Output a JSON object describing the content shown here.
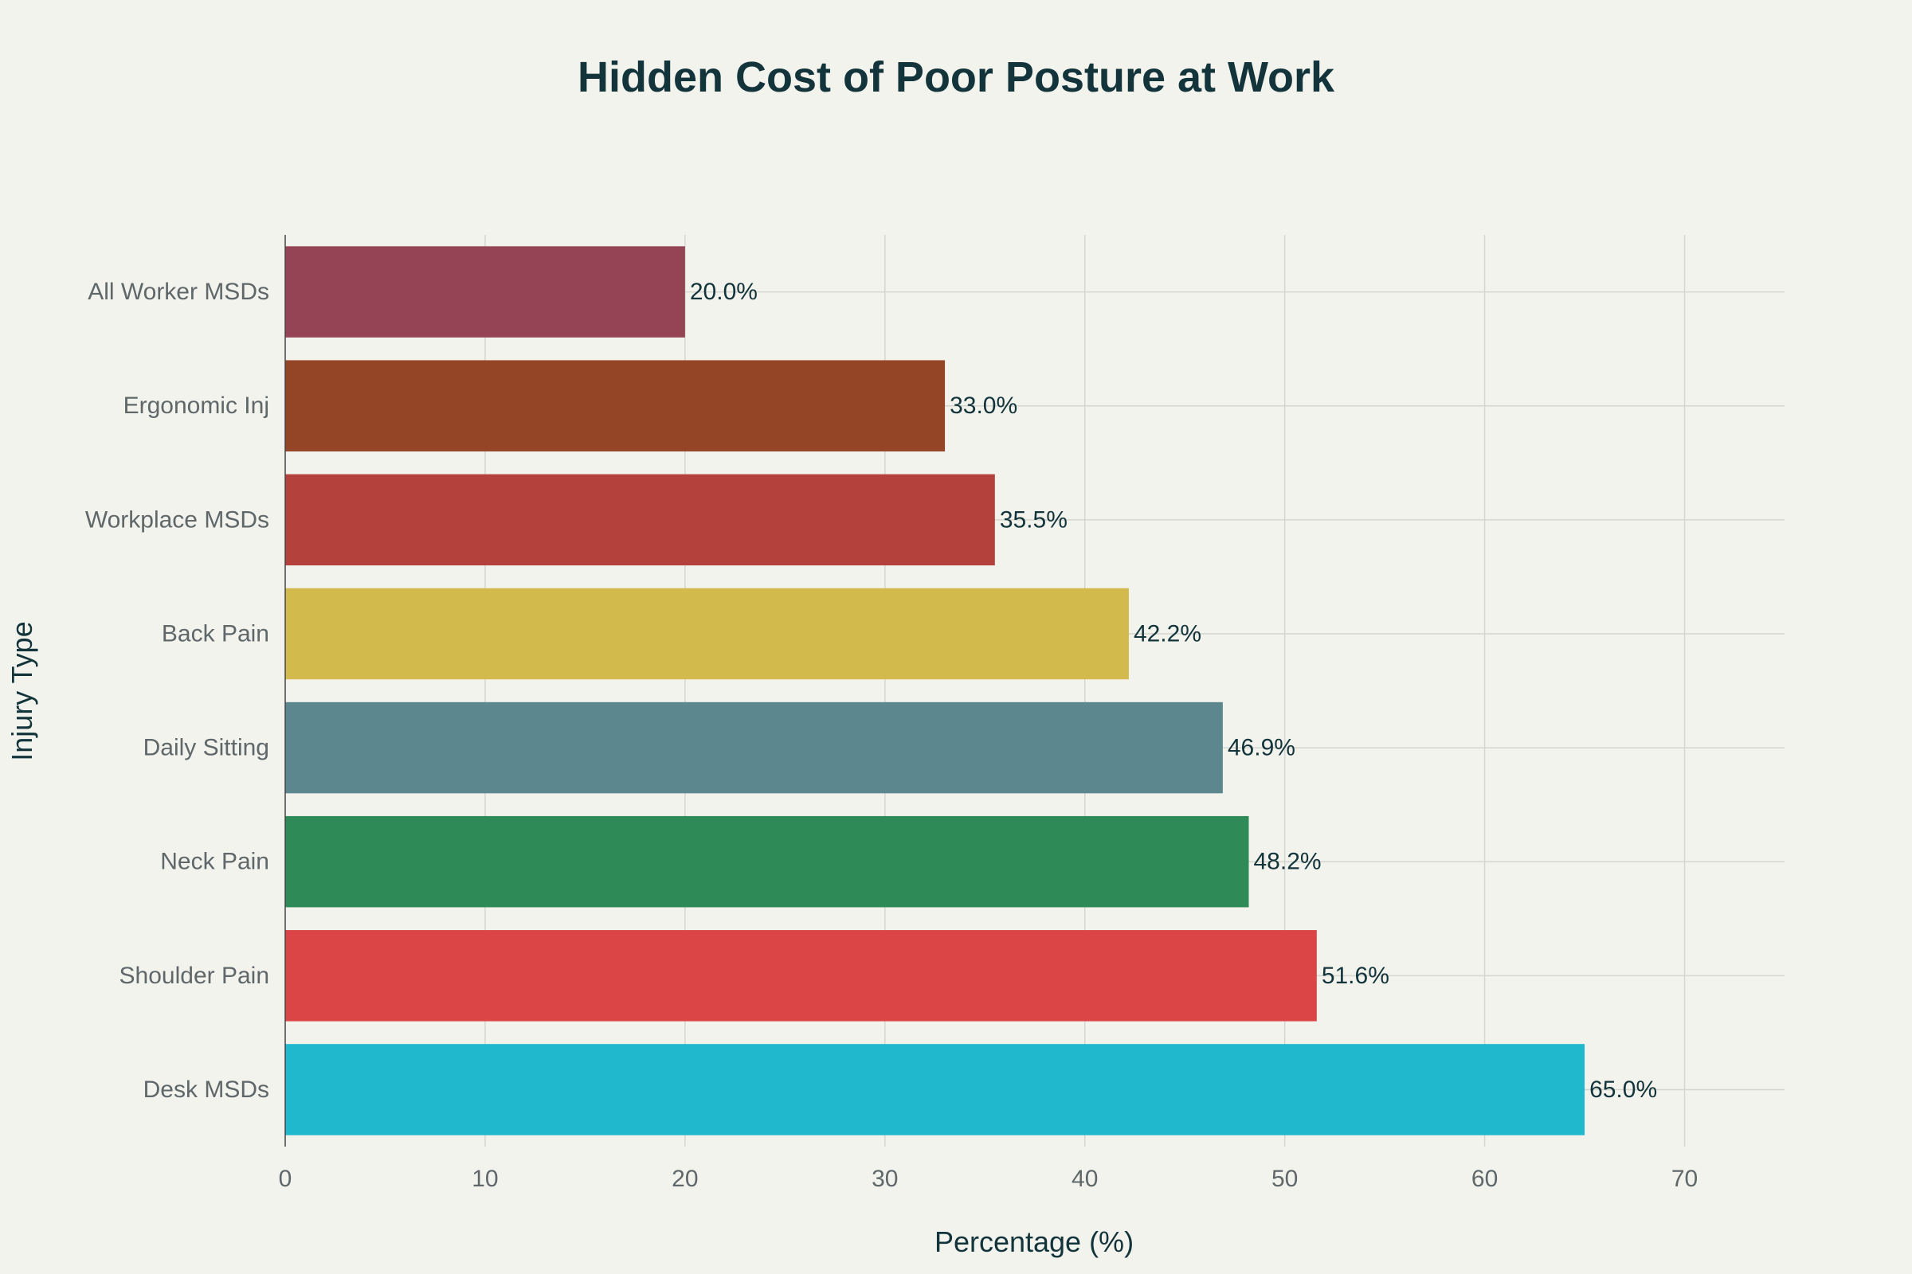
{
  "chart_data": {
    "type": "bar",
    "orientation": "horizontal",
    "title": "Hidden Cost of Poor Posture at Work",
    "xlabel": "Percentage (%)",
    "ylabel": "Injury Type",
    "xlim": [
      0,
      75
    ],
    "xticks": [
      0,
      10,
      20,
      30,
      40,
      50,
      60,
      70
    ],
    "grid": true,
    "legend": "none",
    "categories": [
      "All Worker MSDs",
      "Ergonomic Inj",
      "Workplace MSDs",
      "Back Pain",
      "Daily Sitting",
      "Neck Pain",
      "Shoulder Pain",
      "Desk MSDs"
    ],
    "values": [
      20.0,
      33.0,
      35.5,
      42.2,
      46.9,
      48.2,
      51.6,
      65.0
    ],
    "value_labels": [
      "20.0%",
      "33.0%",
      "35.5%",
      "42.2%",
      "46.9%",
      "48.2%",
      "51.6%",
      "65.0%"
    ],
    "colors": [
      "#944454",
      "#944525",
      "#b4413c",
      "#d2ba4c",
      "#5d878f",
      "#2e8b57",
      "#db4545",
      "#1fb8cd"
    ]
  }
}
